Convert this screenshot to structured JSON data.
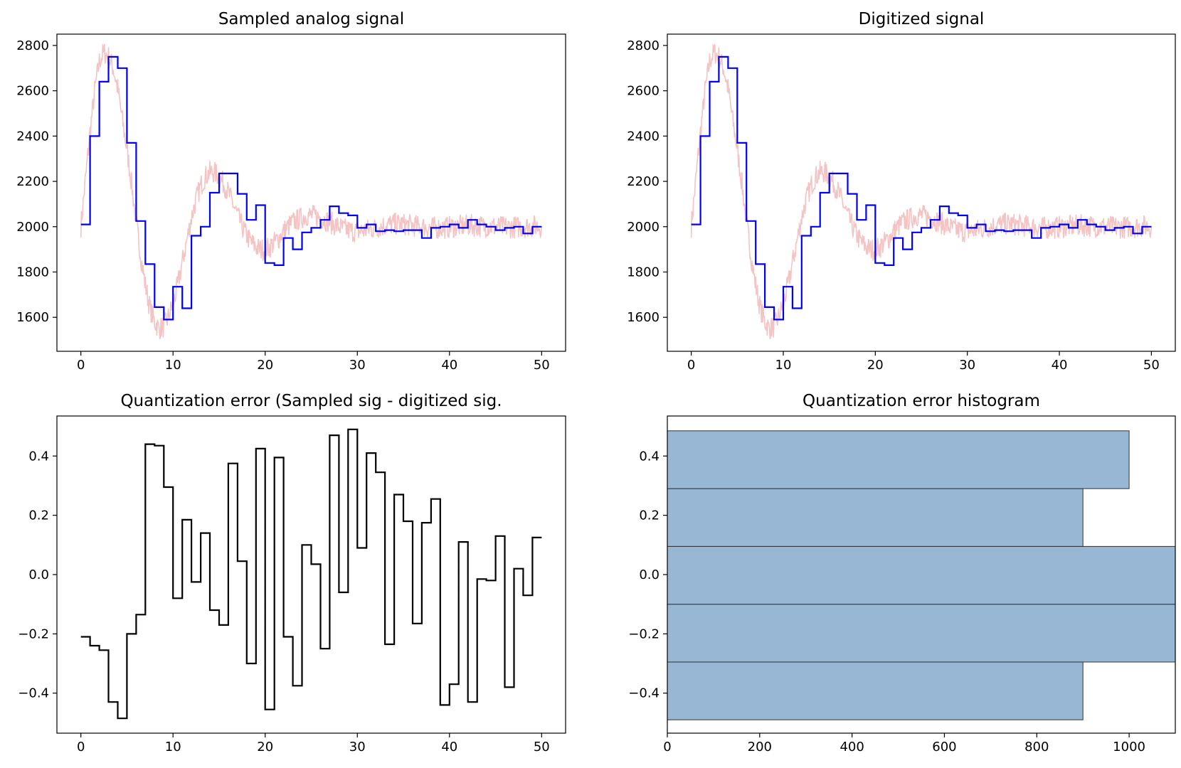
{
  "chart_data": [
    {
      "type": "line",
      "title": "Sampled analog signal",
      "xlabel": "",
      "ylabel": "",
      "xlim": [
        -2.6,
        52.6
      ],
      "ylim": [
        1450,
        2850
      ],
      "xticks": [
        0,
        10,
        20,
        30,
        40,
        50
      ],
      "yticks": [
        1600,
        1800,
        2000,
        2200,
        2400,
        2600,
        2800
      ],
      "grid": false,
      "series": [
        {
          "color": "#f4c3c3",
          "style": "noisy analog line",
          "x": [
            0,
            0.5,
            1,
            1.5,
            2,
            2.5,
            3,
            3.5,
            4,
            4.5,
            5,
            5.5,
            6,
            6.5,
            7,
            7.5,
            8,
            8.5,
            9,
            9.5,
            10,
            10.5,
            11,
            11.5,
            12,
            12.5,
            13,
            13.5,
            14,
            14.5,
            15,
            15.5,
            16,
            16.5,
            17,
            17.5,
            18,
            18.5,
            19,
            19.5,
            20,
            20.5,
            21,
            21.5,
            22,
            22.5,
            23,
            23.5,
            24,
            24.5,
            25,
            25.5,
            26,
            26.5,
            27,
            27.5,
            28,
            28.5,
            29,
            29.5,
            30,
            30.5,
            31,
            31.5,
            32,
            32.5,
            33,
            33.5,
            34,
            34.5,
            35,
            35.5,
            36,
            36.5,
            37,
            37.5,
            38,
            38.5,
            39,
            39.5,
            40,
            40.5,
            41,
            41.5,
            42,
            42.5,
            43,
            43.5,
            44,
            44.5,
            45,
            45.5,
            46,
            46.5,
            47,
            47.5,
            48,
            48.5,
            49,
            49.5,
            50
          ],
          "y": [
            2000,
            2210,
            2420,
            2600,
            2730,
            2770,
            2750,
            2700,
            2610,
            2470,
            2340,
            2190,
            2020,
            1870,
            1740,
            1640,
            1580,
            1550,
            1560,
            1600,
            1660,
            1740,
            1840,
            1940,
            2040,
            2120,
            2180,
            2220,
            2240,
            2240,
            2220,
            2190,
            2150,
            2100,
            2050,
            2000,
            1960,
            1930,
            1910,
            1900,
            1900,
            1910,
            1930,
            1950,
            1980,
            2000,
            2020,
            2030,
            2040,
            2050,
            2050,
            2045,
            2040,
            2030,
            2020,
            2010,
            2000,
            1990,
            1985,
            1980,
            1980,
            1982,
            1985,
            1990,
            1995,
            2000,
            2005,
            2010,
            2012,
            2012,
            2010,
            2008,
            2005,
            2002,
            2000,
            1998,
            1996,
            1995,
            1995,
            1996,
            1998,
            2000,
            2002,
            2004,
            2005,
            2005,
            2004,
            2003,
            2002,
            2001,
            2000,
            1999,
            1998,
            1998,
            1998,
            1999,
            2000,
            2001,
            2002,
            2002,
            2001
          ]
        },
        {
          "color": "#0000ff",
          "style": "step (where=post)",
          "x": [
            0,
            1,
            2,
            3,
            4,
            5,
            6,
            7,
            8,
            9,
            10,
            11,
            12,
            13,
            14,
            15,
            16,
            17,
            18,
            19,
            20,
            21,
            22,
            23,
            24,
            25,
            26,
            27,
            28,
            29,
            30,
            31,
            32,
            33,
            34,
            35,
            36,
            37,
            38,
            39,
            40,
            41,
            42,
            43,
            44,
            45,
            46,
            47,
            48,
            49,
            50
          ],
          "y": [
            2010,
            2400,
            2640,
            2750,
            2700,
            2370,
            2025,
            1835,
            1645,
            1590,
            1735,
            1640,
            1960,
            2000,
            2150,
            2235,
            2235,
            2145,
            2030,
            2095,
            1840,
            1830,
            1950,
            1900,
            1975,
            1995,
            2030,
            2090,
            2060,
            2050,
            1995,
            2010,
            1980,
            1985,
            1980,
            1985,
            1985,
            1950,
            1995,
            2000,
            2010,
            1995,
            2030,
            2010,
            2000,
            1985,
            1995,
            2000,
            1970,
            2000,
            2000
          ]
        }
      ]
    },
    {
      "type": "line",
      "title": "Digitized signal",
      "xlabel": "",
      "ylabel": "",
      "xlim": [
        -2.6,
        52.6
      ],
      "ylim": [
        1450,
        2850
      ],
      "xticks": [
        0,
        10,
        20,
        30,
        40,
        50
      ],
      "yticks": [
        1600,
        1800,
        2000,
        2200,
        2400,
        2600,
        2800
      ],
      "grid": false,
      "series": [
        {
          "color": "#f4c3c3",
          "style": "noisy analog line",
          "x": [
            0,
            0.5,
            1,
            1.5,
            2,
            2.5,
            3,
            3.5,
            4,
            4.5,
            5,
            5.5,
            6,
            6.5,
            7,
            7.5,
            8,
            8.5,
            9,
            9.5,
            10,
            10.5,
            11,
            11.5,
            12,
            12.5,
            13,
            13.5,
            14,
            14.5,
            15,
            15.5,
            16,
            16.5,
            17,
            17.5,
            18,
            18.5,
            19,
            19.5,
            20,
            20.5,
            21,
            21.5,
            22,
            22.5,
            23,
            23.5,
            24,
            24.5,
            25,
            25.5,
            26,
            26.5,
            27,
            27.5,
            28,
            28.5,
            29,
            29.5,
            30,
            30.5,
            31,
            31.5,
            32,
            32.5,
            33,
            33.5,
            34,
            34.5,
            35,
            35.5,
            36,
            36.5,
            37,
            37.5,
            38,
            38.5,
            39,
            39.5,
            40,
            40.5,
            41,
            41.5,
            42,
            42.5,
            43,
            43.5,
            44,
            44.5,
            45,
            45.5,
            46,
            46.5,
            47,
            47.5,
            48,
            48.5,
            49,
            49.5,
            50
          ],
          "y": [
            2000,
            2210,
            2420,
            2600,
            2730,
            2770,
            2750,
            2700,
            2610,
            2470,
            2340,
            2190,
            2020,
            1870,
            1740,
            1640,
            1580,
            1550,
            1560,
            1600,
            1660,
            1740,
            1840,
            1940,
            2040,
            2120,
            2180,
            2220,
            2240,
            2240,
            2220,
            2190,
            2150,
            2100,
            2050,
            2000,
            1960,
            1930,
            1910,
            1900,
            1900,
            1910,
            1930,
            1950,
            1980,
            2000,
            2020,
            2030,
            2040,
            2050,
            2050,
            2045,
            2040,
            2030,
            2020,
            2010,
            2000,
            1990,
            1985,
            1980,
            1980,
            1982,
            1985,
            1990,
            1995,
            2000,
            2005,
            2010,
            2012,
            2012,
            2010,
            2008,
            2005,
            2002,
            2000,
            1998,
            1996,
            1995,
            1995,
            1996,
            1998,
            2000,
            2002,
            2004,
            2005,
            2005,
            2004,
            2003,
            2002,
            2001,
            2000,
            1999,
            1998,
            1998,
            1998,
            1999,
            2000,
            2001,
            2002,
            2002,
            2001
          ]
        },
        {
          "color": "#0000ff",
          "style": "step (where=post)",
          "x": [
            0,
            1,
            2,
            3,
            4,
            5,
            6,
            7,
            8,
            9,
            10,
            11,
            12,
            13,
            14,
            15,
            16,
            17,
            18,
            19,
            20,
            21,
            22,
            23,
            24,
            25,
            26,
            27,
            28,
            29,
            30,
            31,
            32,
            33,
            34,
            35,
            36,
            37,
            38,
            39,
            40,
            41,
            42,
            43,
            44,
            45,
            46,
            47,
            48,
            49,
            50
          ],
          "y": [
            2010,
            2400,
            2640,
            2750,
            2700,
            2370,
            2025,
            1835,
            1645,
            1590,
            1735,
            1640,
            1960,
            2000,
            2150,
            2235,
            2235,
            2145,
            2030,
            2095,
            1840,
            1830,
            1950,
            1900,
            1975,
            1995,
            2030,
            2090,
            2060,
            2050,
            1995,
            2010,
            1980,
            1985,
            1980,
            1985,
            1985,
            1950,
            1995,
            2000,
            2010,
            1995,
            2030,
            2010,
            2000,
            1985,
            1995,
            2000,
            1970,
            2000,
            2000
          ]
        }
      ]
    },
    {
      "type": "line",
      "title": "Quantization error (Sampled sig - digitized sig.",
      "xlabel": "",
      "ylabel": "",
      "xlim": [
        -2.6,
        52.6
      ],
      "ylim": [
        -0.535,
        0.535
      ],
      "xticks": [
        0,
        10,
        20,
        30,
        40,
        50
      ],
      "yticks": [
        -0.4,
        -0.2,
        0.0,
        0.2,
        0.4
      ],
      "grid": false,
      "series": [
        {
          "color": "#000000",
          "style": "step (where=post)",
          "x": [
            0,
            1,
            2,
            3,
            4,
            5,
            6,
            7,
            8,
            9,
            10,
            11,
            12,
            13,
            14,
            15,
            16,
            17,
            18,
            19,
            20,
            21,
            22,
            23,
            24,
            25,
            26,
            27,
            28,
            29,
            30,
            31,
            32,
            33,
            34,
            35,
            36,
            37,
            38,
            39,
            40,
            41,
            42,
            43,
            44,
            45,
            46,
            47,
            48,
            49,
            50
          ],
          "y": [
            -0.21,
            -0.24,
            -0.255,
            -0.43,
            -0.485,
            -0.2,
            -0.135,
            0.44,
            0.435,
            0.295,
            -0.08,
            0.185,
            -0.025,
            0.14,
            -0.12,
            -0.17,
            0.375,
            0.045,
            -0.3,
            0.425,
            -0.455,
            0.395,
            -0.21,
            -0.375,
            0.1,
            0.035,
            -0.25,
            0.47,
            -0.06,
            0.49,
            0.09,
            0.41,
            0.345,
            -0.235,
            0.27,
            0.18,
            -0.165,
            0.175,
            0.255,
            -0.44,
            -0.37,
            0.11,
            -0.43,
            -0.015,
            -0.02,
            0.13,
            -0.38,
            0.02,
            -0.07,
            0.125,
            0.125
          ]
        }
      ]
    },
    {
      "type": "bar",
      "orientation": "horizontal",
      "title": "Quantization error histogram",
      "xlabel": "",
      "ylabel": "",
      "xlim": [
        0,
        1100
      ],
      "ylim": [
        -0.535,
        0.535
      ],
      "xticks": [
        0,
        200,
        400,
        600,
        800,
        1000
      ],
      "yticks": [
        -0.4,
        -0.2,
        0.0,
        0.2,
        0.4
      ],
      "grid": false,
      "bar_color": "#97b7d4",
      "edge_color": "#333333",
      "bins": [
        {
          "from": -0.49,
          "to": -0.295,
          "count": 900
        },
        {
          "from": -0.295,
          "to": -0.1,
          "count": 1100
        },
        {
          "from": -0.1,
          "to": 0.095,
          "count": 1100
        },
        {
          "from": 0.095,
          "to": 0.29,
          "count": 900
        },
        {
          "from": 0.29,
          "to": 0.485,
          "count": 1000
        }
      ]
    }
  ]
}
